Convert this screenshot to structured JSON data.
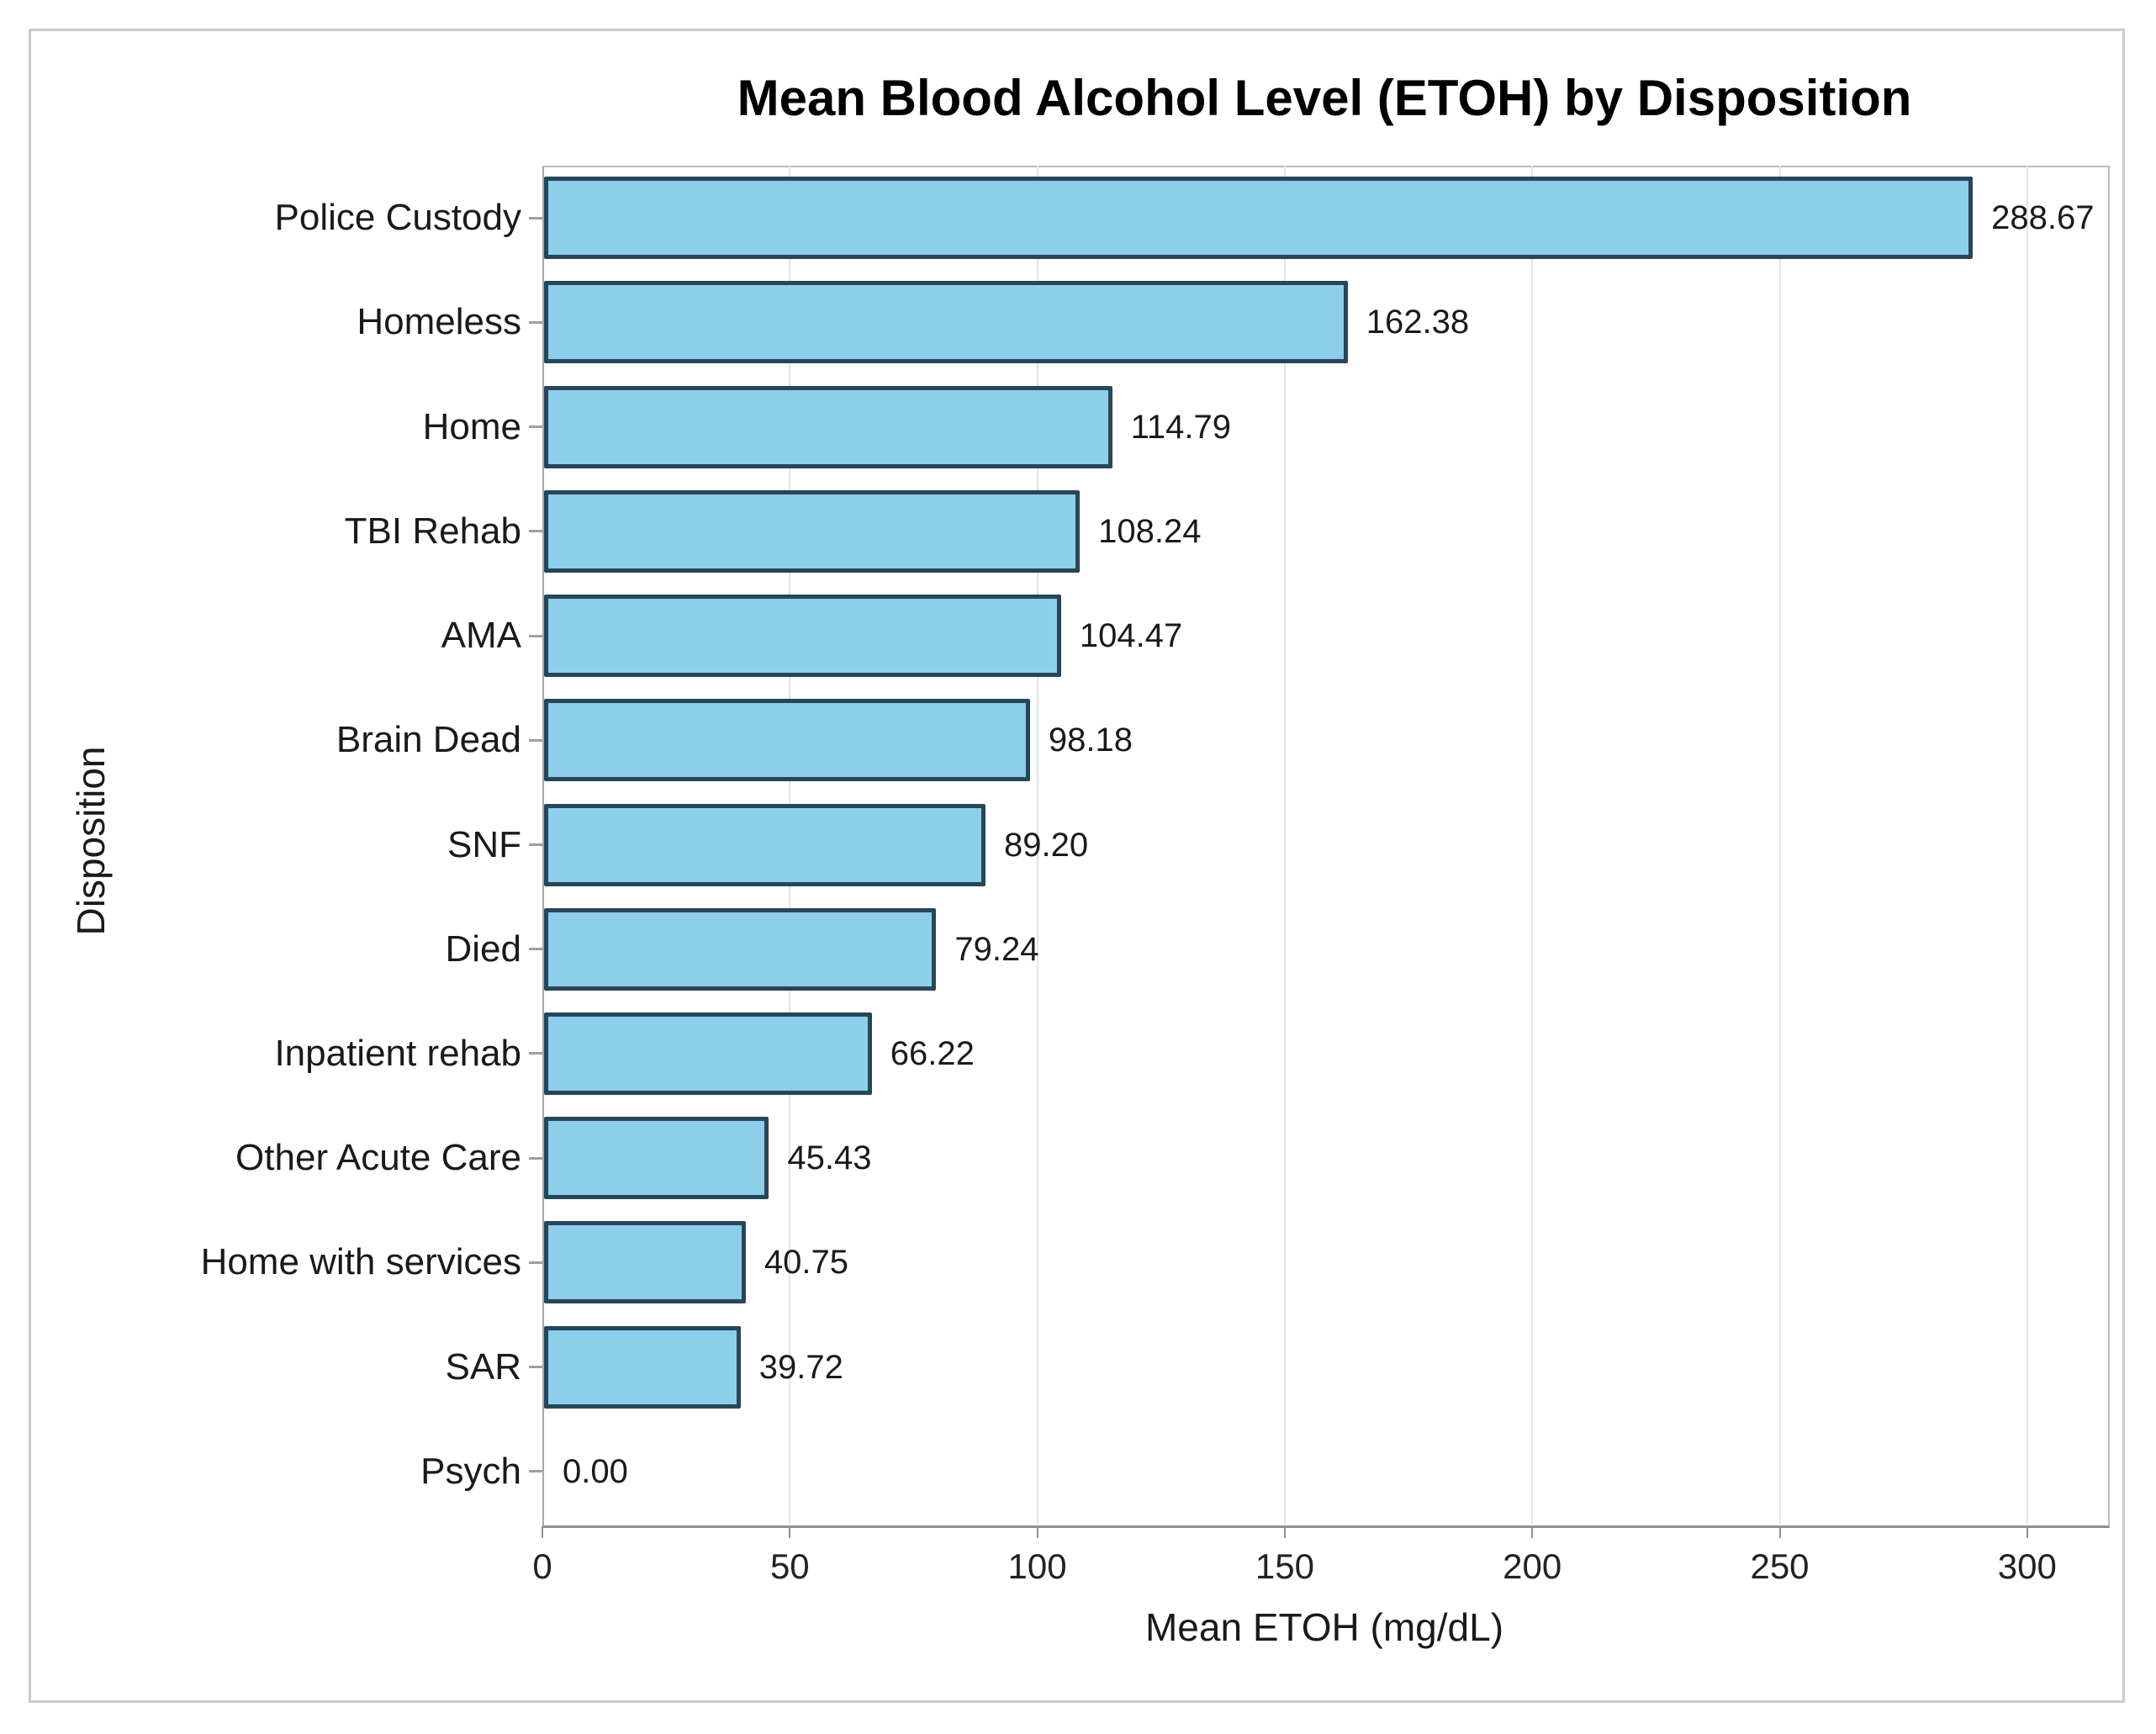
{
  "figure": {
    "title": "Mean Blood Alcohol Level (ETOH) by Disposition"
  },
  "chart_data": {
    "type": "bar",
    "orientation": "horizontal",
    "title": "Mean Blood Alcohol Level (ETOH) by Disposition",
    "xlabel": "Mean ETOH (mg/dL)",
    "ylabel": "Disposition",
    "categories": [
      "Police Custody",
      "Homeless",
      "Home",
      "TBI Rehab",
      "AMA",
      "Brain Dead",
      "SNF",
      "Died",
      "Inpatient rehab",
      "Other Acute Care",
      "Home with services",
      "SAR",
      "Psych"
    ],
    "values": [
      288.67,
      162.38,
      114.79,
      108.24,
      104.47,
      98.18,
      89.2,
      79.24,
      66.22,
      45.43,
      40.75,
      39.72,
      0.0
    ],
    "value_labels": [
      "288.67",
      "162.38",
      "114.79",
      "108.24",
      "104.47",
      "98.18",
      "89.20",
      "79.24",
      "66.22",
      "45.43",
      "40.75",
      "39.72",
      "0.00"
    ],
    "xticks": [
      0,
      50,
      100,
      150,
      200,
      250,
      300
    ],
    "xtick_labels": [
      "0",
      "50",
      "100",
      "150",
      "200",
      "250",
      "300"
    ],
    "xlim": [
      0,
      316
    ],
    "grid": "vertical",
    "legend": "none",
    "colors": {
      "bar_fill": "#8DCEEB",
      "bar_border": "#27465A",
      "gridline": "#E4E4E4",
      "axis_frame": "#B9B9B9",
      "axis_bottom": "#8F8F8F",
      "tick": "#8F8F8F",
      "text": "#1A1A1A",
      "title_text": "#000000",
      "figure_border": "#CBCBCB"
    }
  }
}
